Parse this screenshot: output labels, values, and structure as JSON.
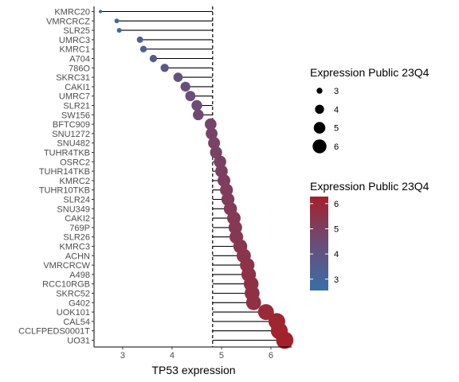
{
  "chart_data": {
    "type": "lollipop",
    "xlabel": "TP53 expression",
    "ylabel": "",
    "xlim": [
      2.42,
      6.42
    ],
    "x_ticks": [
      "3",
      "4",
      "5",
      "6"
    ],
    "reference_line_x": 4.82,
    "grid": false,
    "legend_position": "right",
    "points": [
      {
        "label": "KMRC20",
        "x": 2.55
      },
      {
        "label": "VMRCRCZ",
        "x": 2.88
      },
      {
        "label": "SLR25",
        "x": 2.93
      },
      {
        "label": "UMRC3",
        "x": 3.35
      },
      {
        "label": "KMRC1",
        "x": 3.42
      },
      {
        "label": "A704",
        "x": 3.62
      },
      {
        "label": "786O",
        "x": 3.85
      },
      {
        "label": "SKRC31",
        "x": 4.12
      },
      {
        "label": "CAKI1",
        "x": 4.27
      },
      {
        "label": "UMRC7",
        "x": 4.37
      },
      {
        "label": "SLR21",
        "x": 4.5
      },
      {
        "label": "SW156",
        "x": 4.53
      },
      {
        "label": "BFTC909",
        "x": 4.78
      },
      {
        "label": "SNU1272",
        "x": 4.8
      },
      {
        "label": "SNU482",
        "x": 4.85
      },
      {
        "label": "TUHR4TKB",
        "x": 4.89
      },
      {
        "label": "OSRC2",
        "x": 4.97
      },
      {
        "label": "TUHR14TKB",
        "x": 5.0
      },
      {
        "label": "KMRC2",
        "x": 5.05
      },
      {
        "label": "TUHR10TKB",
        "x": 5.1
      },
      {
        "label": "SLR24",
        "x": 5.13
      },
      {
        "label": "SNU349",
        "x": 5.18
      },
      {
        "label": "CAKI2",
        "x": 5.25
      },
      {
        "label": "769P",
        "x": 5.28
      },
      {
        "label": "SLR26",
        "x": 5.3
      },
      {
        "label": "KMRC3",
        "x": 5.38
      },
      {
        "label": "ACHN",
        "x": 5.45
      },
      {
        "label": "VMRCRCW",
        "x": 5.52
      },
      {
        "label": "A498",
        "x": 5.55
      },
      {
        "label": "RCC10RGB",
        "x": 5.6
      },
      {
        "label": "SKRC52",
        "x": 5.62
      },
      {
        "label": "G402",
        "x": 5.65
      },
      {
        "label": "UOK101",
        "x": 5.9
      },
      {
        "label": "CAL54",
        "x": 6.12
      },
      {
        "label": "CCLFPEDS0001T",
        "x": 6.17
      },
      {
        "label": "UO31",
        "x": 6.28
      }
    ],
    "legend_size": {
      "title": "Expression Public 23Q4",
      "labels": [
        "3",
        "4",
        "5",
        "6"
      ],
      "values": [
        3,
        4,
        5,
        6
      ]
    },
    "legend_color": {
      "title": "Expression Public 23Q4",
      "labels": [
        "3",
        "4",
        "5",
        "6"
      ],
      "values": [
        3,
        4,
        5,
        6
      ],
      "low_color": "#3a6ea5",
      "mid_color": "#6a4d78",
      "high_color": "#a4212a"
    }
  }
}
